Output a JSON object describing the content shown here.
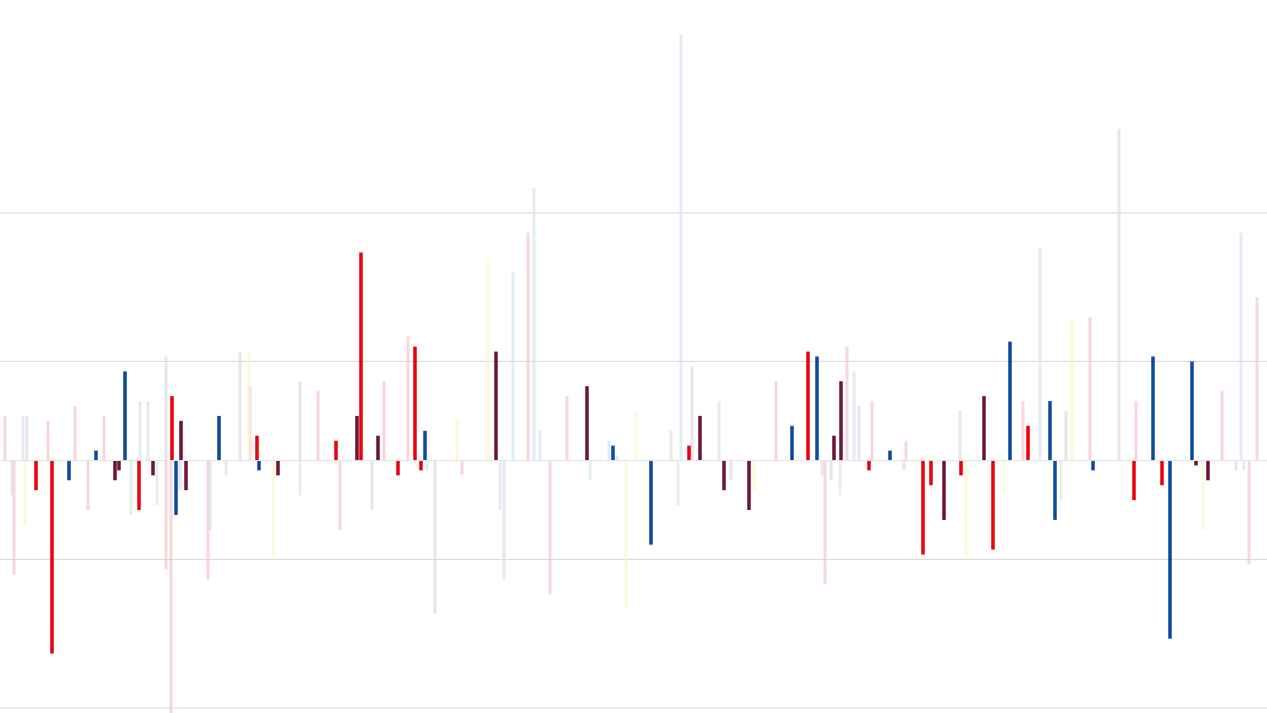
{
  "chart_data": {
    "type": "bar",
    "title": "",
    "xlabel": "",
    "ylabel": "",
    "ylim": [
      -25.5,
      46.5
    ],
    "baseline": 0,
    "gridlines": [
      -25,
      -10,
      10,
      25
    ],
    "grid": true,
    "legend": "none",
    "series": [
      {
        "color": "#e8000d",
        "emphasis": "highlighted",
        "points": [
          [
            36,
            -3
          ],
          [
            52,
            -19.5
          ],
          [
            139,
            -5
          ],
          [
            172,
            6.5
          ],
          [
            257,
            2.5
          ],
          [
            336,
            2
          ],
          [
            361,
            21
          ],
          [
            398,
            -1.5
          ],
          [
            415,
            11.5
          ],
          [
            421,
            -1
          ],
          [
            689,
            1.5
          ],
          [
            808,
            11
          ],
          [
            869,
            -1
          ],
          [
            923,
            -9.5
          ],
          [
            931,
            -2.5
          ],
          [
            961,
            -1.5
          ],
          [
            993,
            -9
          ],
          [
            1028,
            3.5
          ],
          [
            1134,
            -4
          ],
          [
            1162,
            -2.5
          ]
        ]
      },
      {
        "color": "#0a4a9a",
        "emphasis": "highlighted",
        "points": [
          [
            69,
            -2
          ],
          [
            96,
            1
          ],
          [
            125,
            9
          ],
          [
            176,
            -5.5
          ],
          [
            219,
            4.5
          ],
          [
            259,
            -1
          ],
          [
            425,
            3
          ],
          [
            613,
            1.5
          ],
          [
            651,
            -8.5
          ],
          [
            792,
            3.5
          ],
          [
            817,
            10.5
          ],
          [
            890,
            1
          ],
          [
            1010,
            12
          ],
          [
            1050,
            6
          ],
          [
            1055,
            -6
          ],
          [
            1093,
            -1
          ],
          [
            1153,
            10.5
          ],
          [
            1170,
            -18
          ],
          [
            1192,
            10
          ]
        ]
      },
      {
        "color": "#6b1235",
        "emphasis": "highlighted",
        "points": [
          [
            115,
            -2
          ],
          [
            119,
            -1
          ],
          [
            153,
            -1.5
          ],
          [
            181,
            4
          ],
          [
            186,
            -3
          ],
          [
            278,
            -1.5
          ],
          [
            357,
            4.5
          ],
          [
            378,
            2.5
          ],
          [
            496,
            11
          ],
          [
            587,
            7.5
          ],
          [
            700,
            4.5
          ],
          [
            724,
            -3
          ],
          [
            749,
            -5
          ],
          [
            834,
            2.5
          ],
          [
            841,
            8
          ],
          [
            944,
            -6
          ],
          [
            984,
            6.5
          ],
          [
            1196,
            -0.5
          ],
          [
            1208,
            -2
          ]
        ]
      },
      {
        "color": "#d6e4f2",
        "emphasis": "faded",
        "points": [
          [
            23,
            4.5
          ],
          [
            140,
            6
          ],
          [
            148,
            6
          ],
          [
            226,
            -1.5
          ],
          [
            427,
            -1
          ],
          [
            500,
            -5
          ],
          [
            513,
            19
          ],
          [
            534,
            27.5
          ],
          [
            540,
            3
          ],
          [
            609,
            2
          ],
          [
            671,
            3
          ],
          [
            681,
            43
          ],
          [
            719,
            6
          ],
          [
            822,
            -1.5
          ],
          [
            854,
            9
          ],
          [
            1040,
            21.5
          ],
          [
            1241,
            23
          ],
          [
            1244,
            -1
          ]
        ]
      },
      {
        "color": "#f5c6cc",
        "emphasis": "faded",
        "points": [
          [
            5,
            4.5
          ],
          [
            14,
            -11.5
          ],
          [
            48,
            4
          ],
          [
            75,
            5.5
          ],
          [
            88,
            -5
          ],
          [
            104,
            4.5
          ],
          [
            166,
            -11
          ],
          [
            171,
            -25.5
          ],
          [
            208,
            -12
          ],
          [
            250,
            7.5
          ],
          [
            318,
            7
          ],
          [
            340,
            -7
          ],
          [
            384,
            8
          ],
          [
            408,
            12.5
          ],
          [
            462,
            -1.5
          ],
          [
            528,
            23
          ],
          [
            550,
            -13.5
          ],
          [
            567,
            6.5
          ],
          [
            776,
            8
          ],
          [
            825,
            -12.5
          ],
          [
            847,
            11.5
          ],
          [
            872,
            6
          ],
          [
            906,
            2
          ],
          [
            1023,
            6
          ],
          [
            1090,
            14.5
          ],
          [
            1136,
            6
          ],
          [
            1222,
            7
          ],
          [
            1249,
            -10.5
          ],
          [
            1257,
            16.5
          ]
        ]
      },
      {
        "color": "#dcdce4",
        "emphasis": "faded",
        "points": [
          [
            12,
            -3.5
          ],
          [
            27,
            4.5
          ],
          [
            166,
            10.5
          ],
          [
            180,
            -3
          ],
          [
            210,
            -7
          ],
          [
            240,
            11
          ],
          [
            300,
            8
          ],
          [
            372,
            -5
          ],
          [
            435,
            -15.5
          ],
          [
            504,
            -12
          ],
          [
            617,
            0.5
          ],
          [
            692,
            9.5
          ],
          [
            731,
            -2
          ],
          [
            831,
            -2
          ],
          [
            859,
            5.5
          ],
          [
            904,
            -1
          ],
          [
            960,
            5
          ],
          [
            1066,
            5
          ],
          [
            1119,
            33.5
          ],
          [
            1236,
            -1
          ]
        ]
      },
      {
        "color": "#fdf5c8",
        "emphasis": "faded",
        "points": [
          [
            25,
            -6.5
          ],
          [
            249,
            11
          ],
          [
            273,
            -9.5
          ],
          [
            457,
            4
          ],
          [
            488,
            20
          ],
          [
            626,
            -15
          ],
          [
            636,
            5
          ],
          [
            754,
            -3
          ],
          [
            966,
            -9.5
          ],
          [
            1004,
            -3
          ],
          [
            1072,
            14
          ],
          [
            1203,
            -7
          ]
        ]
      },
      {
        "color": "#d9ecd9",
        "emphasis": "faded",
        "points": [
          [
            131,
            -5.5
          ],
          [
            157,
            -4.5
          ],
          [
            300,
            -3.5
          ],
          [
            590,
            -2
          ],
          [
            678,
            -4.5
          ],
          [
            840,
            -3.5
          ],
          [
            1061,
            -4
          ]
        ]
      }
    ]
  }
}
